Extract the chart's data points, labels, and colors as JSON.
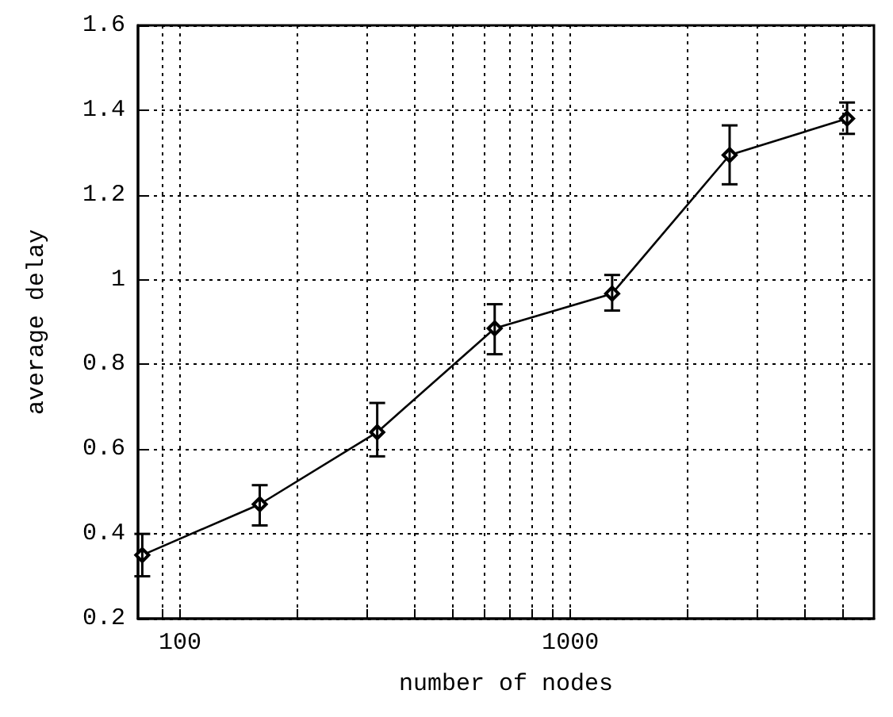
{
  "chart_data": {
    "type": "line",
    "xlabel": "number of nodes",
    "ylabel": "average delay",
    "x": [
      80,
      160,
      320,
      640,
      1280,
      2560,
      5120
    ],
    "series": [
      {
        "color": "#000000",
        "values": [
          0.35,
          0.47,
          0.64,
          0.885,
          0.967,
          1.294,
          1.38
        ],
        "errors": [
          [
            0.3,
            0.4
          ],
          [
            0.42,
            0.515
          ],
          [
            0.583,
            0.709
          ],
          [
            0.824,
            0.942
          ],
          [
            0.927,
            1.011
          ],
          [
            1.225,
            1.364
          ],
          [
            1.344,
            1.418
          ]
        ]
      }
    ],
    "log": "x",
    "xlim": [
      78,
      6000
    ],
    "xticks": [
      {
        "value": 90,
        "label": null
      },
      100,
      {
        "value": 200,
        "label": null
      },
      {
        "value": 300,
        "label": null
      },
      {
        "value": 400,
        "label": null
      },
      {
        "value": 500,
        "label": null
      },
      {
        "value": 600,
        "label": null
      },
      {
        "value": 700,
        "label": null
      },
      {
        "value": 800,
        "label": null
      },
      {
        "value": 900,
        "label": null
      },
      1000,
      {
        "value": 2000,
        "label": null
      },
      {
        "value": 3000,
        "label": null
      },
      {
        "value": 4000,
        "label": null
      },
      {
        "value": 5000,
        "label": null
      }
    ],
    "ylim": [
      0.2,
      1.6
    ],
    "yticks": [
      0.2,
      0.4,
      0.6,
      0.8,
      1,
      1.2,
      1.4,
      1.6
    ],
    "grid": true,
    "marker": "diamond",
    "line_style": "solid"
  }
}
